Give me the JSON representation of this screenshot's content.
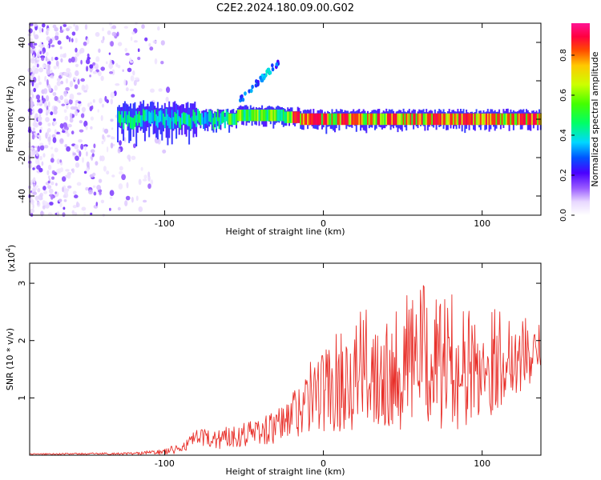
{
  "title": "C2E2.2024.180.09.00.G02",
  "colors": {
    "snr_line": "#e8302a",
    "axis": "#000000",
    "background": "#ffffff"
  },
  "chart_data": [
    {
      "type": "heatmap",
      "id": "spectrogram",
      "xlabel": "Height of straight line (km)",
      "ylabel": "Frequency (Hz)",
      "xlim": [
        -185,
        137
      ],
      "ylim": [
        -50,
        50
      ],
      "xticks": [
        -100,
        0,
        100
      ],
      "xtick_labels": [
        "-100",
        "0",
        "100"
      ],
      "yticks": [
        -40,
        -20,
        0,
        20,
        40
      ],
      "ytick_labels": [
        "-40",
        "-20",
        "0",
        "20",
        "40"
      ],
      "colorbar": {
        "label": "Normalized spectral amplitude",
        "range": [
          0.0,
          0.96
        ],
        "ticks": [
          0.0,
          0.2,
          0.4,
          0.6,
          0.8
        ],
        "tick_labels": [
          "0.0",
          "0.2",
          "0.4",
          "0.6",
          "0.8"
        ],
        "colormap": "rainbow-white"
      },
      "features": [
        {
          "name": "noise",
          "x_range": [
            -185,
            -108
          ],
          "freq_range": [
            -50,
            50
          ],
          "amplitude": 0.15
        },
        {
          "name": "carrier",
          "x_range": [
            -130,
            137
          ],
          "freq_center": 0,
          "freq_width": 3,
          "amplitude": 0.9
        },
        {
          "name": "drift",
          "x_range": [
            -55,
            -28
          ],
          "freq_range": [
            8,
            30
          ],
          "amplitude": 0.3
        }
      ]
    },
    {
      "type": "line",
      "id": "snr",
      "xlabel": "Height of straight line (km)",
      "ylabel": "SNR (10 * v/v)",
      "scale_label": "(x10",
      "scale_exp": "4",
      "scale_close": ")",
      "xlim": [
        -185,
        137
      ],
      "ylim": [
        0,
        3.35
      ],
      "xticks": [
        -100,
        0,
        100
      ],
      "xtick_labels": [
        "-100",
        "0",
        "100"
      ],
      "yticks": [
        1,
        2,
        3
      ],
      "ytick_labels": [
        "1",
        "2",
        "3"
      ],
      "series": [
        {
          "x": [
            -185,
            -120,
            -100,
            -90,
            -80,
            -70,
            -60,
            -50,
            -40,
            -30,
            -25,
            -20,
            -15,
            -10,
            -5,
            0,
            5,
            10,
            20,
            30,
            40,
            50,
            60,
            70,
            80,
            90,
            100,
            110,
            120,
            130,
            137
          ],
          "y": [
            0.02,
            0.03,
            0.06,
            0.12,
            0.3,
            0.28,
            0.32,
            0.38,
            0.42,
            0.48,
            0.55,
            0.7,
            0.85,
            0.95,
            1.1,
            1.15,
            1.2,
            1.3,
            1.45,
            1.55,
            1.55,
            1.6,
            1.8,
            1.6,
            1.65,
            1.5,
            1.55,
            1.7,
            1.75,
            1.8,
            1.75
          ],
          "amplitude": [
            0.01,
            0.02,
            0.05,
            0.1,
            0.15,
            0.18,
            0.2,
            0.22,
            0.25,
            0.3,
            0.35,
            0.45,
            0.55,
            0.6,
            0.7,
            0.75,
            0.8,
            0.9,
            1.0,
            1.05,
            1.1,
            1.15,
            1.3,
            1.15,
            1.2,
            1.05,
            1.0,
            0.9,
            0.75,
            0.6,
            0.55
          ]
        }
      ]
    }
  ]
}
